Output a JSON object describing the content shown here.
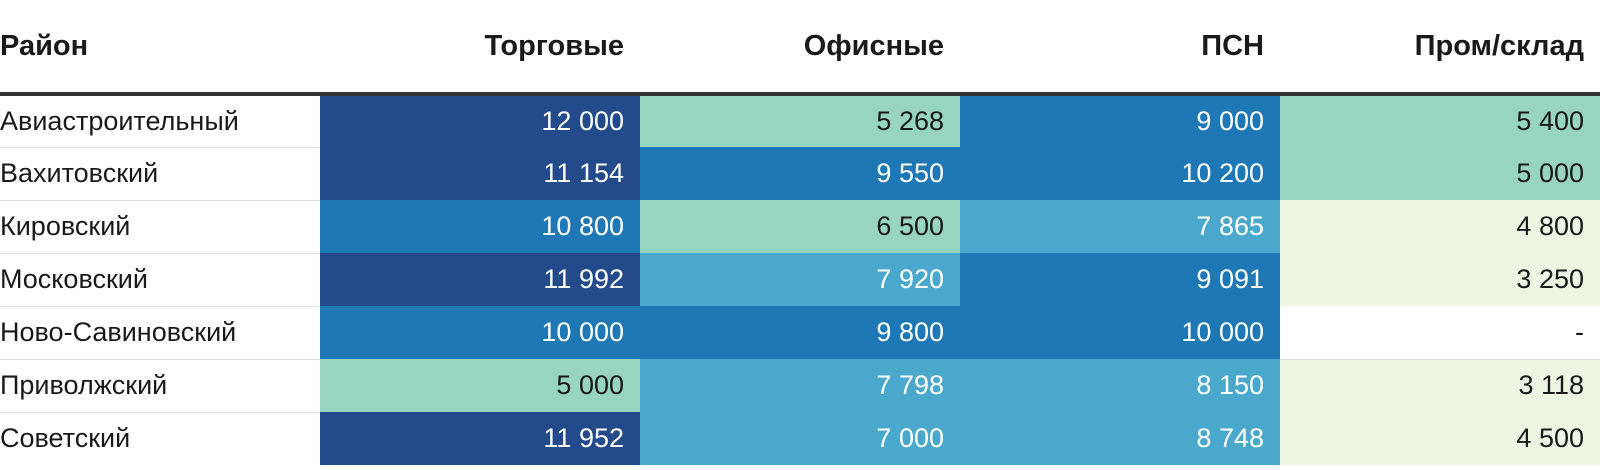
{
  "chart_data": {
    "type": "table",
    "columns": [
      "Район",
      "Торговые",
      "Офисные",
      "ПСН",
      "Пром/склад"
    ],
    "rows": [
      [
        "Авиастроительный",
        "12 000",
        "5 268",
        "9 000",
        "5 400"
      ],
      [
        "Вахитовский",
        "11 154",
        "9 550",
        "10 200",
        "5 000"
      ],
      [
        "Кировский",
        "10 800",
        "6 500",
        "7 865",
        "4 800"
      ],
      [
        "Московский",
        "11 992",
        "7 920",
        "9 091",
        "3 250"
      ],
      [
        "Ново-Савиновский",
        "10 000",
        "9 800",
        "10 000",
        "-"
      ],
      [
        "Приволжский",
        "5 000",
        "7 798",
        "8 150",
        "3 118"
      ],
      [
        "Советский",
        "11 952",
        "7 000",
        "8 748",
        "4 500"
      ]
    ],
    "heatmap_colors": [
      "#edf6e3",
      "#97d5c0",
      "#4aa8cc",
      "#1e78b6",
      "#234a8b"
    ],
    "text_colors": {
      "dark": "#1a1a1a",
      "light": "#ffffff"
    }
  }
}
